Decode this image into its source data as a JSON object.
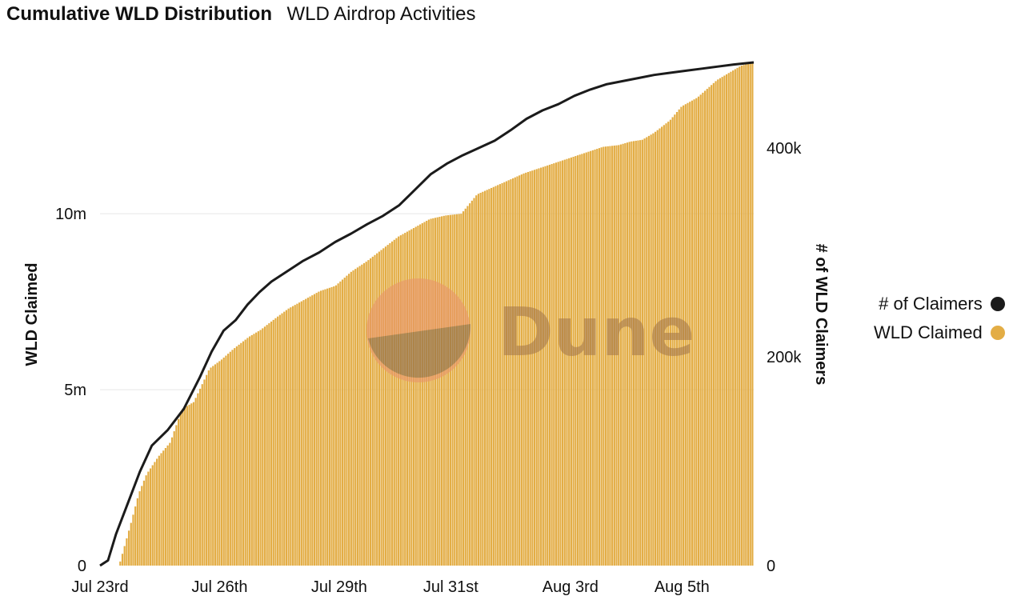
{
  "header": {
    "title": "Cumulative WLD Distribution",
    "subtitle": "WLD Airdrop Activities"
  },
  "watermark": "Dune",
  "colors": {
    "bars": "#e3ad45",
    "line": "#1b1b1b",
    "grid": "#e6e6e6"
  },
  "chart_data": {
    "type": "bar+line",
    "x_tick_labels": [
      "Jul 23rd",
      "Jul 26th",
      "Jul 29th",
      "Jul 31st",
      "Aug 3rd",
      "Aug 5th"
    ],
    "y_left": {
      "label": "WLD Claimed",
      "ticks": [
        "0",
        "5m",
        "10m"
      ],
      "range": [
        0,
        14300000
      ]
    },
    "y_right": {
      "label": "# of WLD Claimers",
      "ticks": [
        "0",
        "200k",
        "400k"
      ],
      "range": [
        0,
        482000
      ]
    },
    "legend": [
      {
        "name": "# of Claimers",
        "color": "#1b1b1b"
      },
      {
        "name": "WLD Claimed",
        "color": "#e3ad45"
      }
    ],
    "series": [
      {
        "name": "WLD Claimed",
        "type": "bar",
        "axis": "left",
        "x_days": [
          0,
          0.3,
          0.6,
          0.8,
          1.0,
          1.3,
          1.6,
          1.9,
          2.2,
          2.6,
          2.9,
          3.2,
          3.6,
          3.9,
          4.3,
          4.6,
          5.0,
          5.4,
          5.8,
          6.2,
          6.6,
          7.0,
          7.4,
          7.8,
          8.2,
          8.6,
          9.0,
          9.4,
          9.8,
          10.2,
          10.6,
          11.0,
          11.4,
          11.8,
          12.2,
          12.6,
          13.0,
          13.3,
          13.6,
          13.9,
          14.3,
          14.6,
          15.0,
          15.3,
          15.5,
          15.8,
          16.1,
          16.4
        ],
        "values": [
          0,
          0,
          1200000,
          2050000,
          2600000,
          3100000,
          3500000,
          4450000,
          4650000,
          5600000,
          5850000,
          6150000,
          6500000,
          6700000,
          7050000,
          7300000,
          7550000,
          7800000,
          7950000,
          8350000,
          8650000,
          9000000,
          9350000,
          9600000,
          9850000,
          9950000,
          10000000,
          10550000,
          10750000,
          10950000,
          11150000,
          11300000,
          11450000,
          11600000,
          11750000,
          11900000,
          11950000,
          12050000,
          12100000,
          12300000,
          12650000,
          13050000,
          13300000,
          13600000,
          13800000,
          14000000,
          14200000,
          14300000
        ]
      },
      {
        "name": "# of Claimers",
        "type": "line",
        "axis": "right",
        "x_days": [
          0,
          0.2,
          0.4,
          0.7,
          1.0,
          1.3,
          1.7,
          2.1,
          2.5,
          2.8,
          3.1,
          3.4,
          3.7,
          4.0,
          4.3,
          4.7,
          5.1,
          5.5,
          5.9,
          6.3,
          6.7,
          7.1,
          7.5,
          7.9,
          8.3,
          8.7,
          9.1,
          9.5,
          9.9,
          10.3,
          10.7,
          11.1,
          11.5,
          11.9,
          12.3,
          12.7,
          13.1,
          13.5,
          13.9,
          14.3,
          14.7,
          15.1,
          15.5,
          15.9,
          16.4
        ],
        "values": [
          0,
          5000,
          30000,
          60000,
          90000,
          115000,
          130000,
          150000,
          180000,
          205000,
          225000,
          235000,
          250000,
          262000,
          272000,
          282000,
          292000,
          300000,
          310000,
          318000,
          327000,
          335000,
          345000,
          360000,
          375000,
          385000,
          393000,
          400000,
          407000,
          417000,
          428000,
          436000,
          442000,
          450000,
          456000,
          461000,
          464000,
          467000,
          470000,
          472000,
          474000,
          476000,
          478000,
          480000,
          482000
        ]
      }
    ]
  }
}
